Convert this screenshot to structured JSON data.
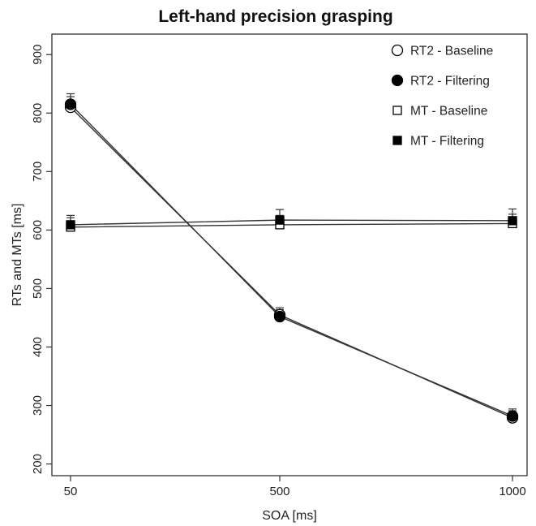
{
  "chart_data": {
    "type": "line",
    "title": "Left-hand precision grasping",
    "xlabel": "SOA [ms]",
    "ylabel": "RTs and MTs [ms]",
    "x": [
      50,
      500,
      1000
    ],
    "x_ticks": [
      "50",
      "500",
      "1000"
    ],
    "x_scale": "categorical",
    "ylim": [
      180,
      935
    ],
    "y_ticks": [
      200,
      300,
      400,
      500,
      600,
      700,
      800,
      900
    ],
    "grid": false,
    "legend_position": "top-right",
    "series": [
      {
        "name": "RT2 - Baseline",
        "marker": "open-circle",
        "values": [
          810,
          455,
          279
        ],
        "error": [
          18,
          12,
          12
        ]
      },
      {
        "name": "RT2 - Filtering",
        "marker": "filled-circle",
        "values": [
          815,
          452,
          282
        ],
        "error": [
          18,
          12,
          12
        ]
      },
      {
        "name": "MT - Baseline",
        "marker": "open-square",
        "values": [
          605,
          609,
          611
        ],
        "error": [
          16,
          16,
          16
        ]
      },
      {
        "name": "MT - Filtering",
        "marker": "filled-square",
        "values": [
          609,
          617,
          616
        ],
        "error": [
          16,
          18,
          20
        ]
      }
    ],
    "colors": {
      "line": "#333333",
      "marker": "#000000",
      "axis": "#333333"
    }
  }
}
